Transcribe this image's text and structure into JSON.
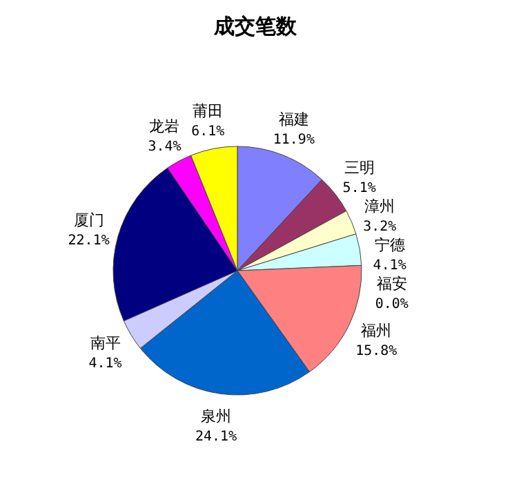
{
  "chart_data": {
    "type": "pie",
    "title": "成交笔数",
    "categories": [
      "福建",
      "三明",
      "漳州",
      "宁德",
      "福安",
      "福州",
      "泉州",
      "南平",
      "厦门",
      "龙岩",
      "莆田"
    ],
    "values": [
      11.9,
      5.1,
      3.2,
      4.1,
      0.0,
      15.8,
      24.1,
      4.1,
      22.1,
      3.4,
      6.1
    ],
    "value_labels": [
      "11.9%",
      "5.1%",
      "3.2%",
      "4.1%",
      "0.0%",
      "15.8%",
      "24.1%",
      "4.1%",
      "22.1%",
      "3.4%",
      "6.1%"
    ],
    "colors": [
      "#8080ff",
      "#993366",
      "#ffffcc",
      "#ccffff",
      "#660066",
      "#ff8080",
      "#0066cc",
      "#ccccff",
      "#000080",
      "#ff00ff",
      "#ffff00"
    ],
    "legend": false
  }
}
